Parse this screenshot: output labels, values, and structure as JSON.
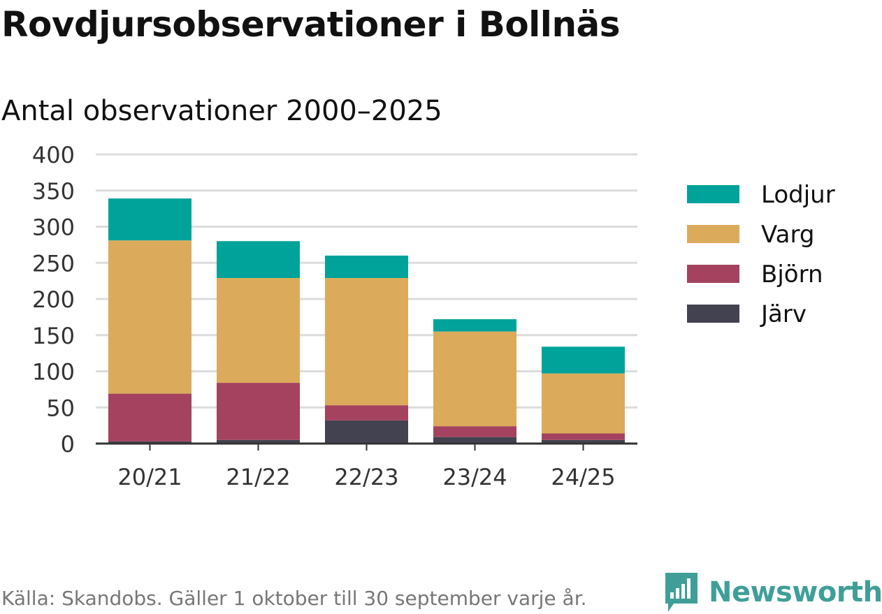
{
  "header": {
    "title": "Rovdjursobservationer i Bollnäs",
    "subtitle": "Antal observationer 2000–2025"
  },
  "chart_data": {
    "type": "bar",
    "stacked": true,
    "categories": [
      "20/21",
      "21/22",
      "22/23",
      "23/24",
      "24/25"
    ],
    "series": [
      {
        "name": "Järv",
        "color": "#434250",
        "values": [
          3,
          5,
          32,
          9,
          5
        ]
      },
      {
        "name": "Björn",
        "color": "#a4425f",
        "values": [
          66,
          79,
          21,
          15,
          9
        ]
      },
      {
        "name": "Varg",
        "color": "#dbab5b",
        "values": [
          212,
          145,
          176,
          131,
          83
        ]
      },
      {
        "name": "Lodjur",
        "color": "#00a39a",
        "values": [
          58,
          51,
          31,
          17,
          37
        ]
      }
    ],
    "legend_order": [
      "Lodjur",
      "Varg",
      "Björn",
      "Järv"
    ],
    "yticks": [
      0,
      50,
      100,
      150,
      200,
      250,
      300,
      350,
      400
    ],
    "ylim": [
      0,
      400
    ],
    "grid": true,
    "legend": "right",
    "xlabel": "",
    "ylabel": ""
  },
  "footer": {
    "source": "Källa: Skandobs. Gäller 1 oktober till 30 september varje år.",
    "brand": "Newsworthy",
    "brand_color": "#3f9f98"
  }
}
